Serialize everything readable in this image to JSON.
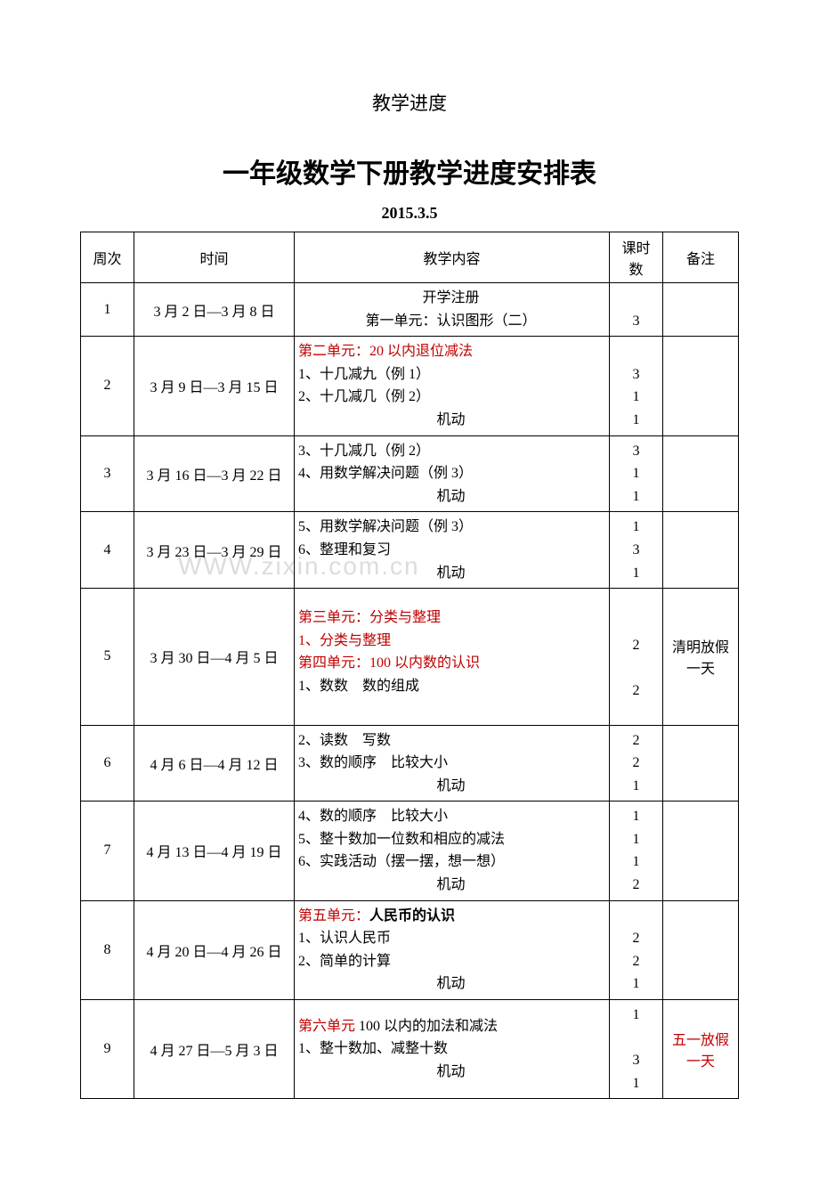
{
  "pre_title": "教学进度",
  "main_title": "一年级数学下册教学进度安排表",
  "date_line": "2015.3.5",
  "watermark": "WWW.zixin.com.cn",
  "headers": {
    "week": "周次",
    "time": "时间",
    "content": "教学内容",
    "hours": "课时数",
    "notes": "备注"
  },
  "rows": [
    {
      "week": "1",
      "time": "3 月 2 日—3 月 8 日",
      "content_lines": [
        {
          "text": "开学注册",
          "align": "center"
        },
        {
          "text": "第一单元：认识图形（二）",
          "align": "center"
        }
      ],
      "hours_lines": [
        "",
        "3"
      ],
      "notes": ""
    },
    {
      "week": "2",
      "time": "3 月 9 日—3 月 15 日",
      "content_lines": [
        {
          "text": "第二单元：20 以内退位减法",
          "red": true
        },
        {
          "text": "1、十几减九（例 1）"
        },
        {
          "text": "2、十几减几（例 2）"
        },
        {
          "text": "机动",
          "align": "center"
        }
      ],
      "hours_lines": [
        "",
        "3",
        "1",
        "1"
      ],
      "notes": ""
    },
    {
      "week": "3",
      "time": "3 月 16 日—3 月 22 日",
      "content_lines": [
        {
          "text": "3、十几减几（例 2）"
        },
        {
          "text": "4、用数学解决问题（例 3）"
        },
        {
          "text": "机动",
          "align": "center"
        }
      ],
      "hours_lines": [
        "3",
        "1",
        "1"
      ],
      "notes": ""
    },
    {
      "week": "4",
      "time": "3 月 23 日—3 月 29 日",
      "content_lines": [
        {
          "text": "5、用数学解决问题（例 3）"
        },
        {
          "text": "6、整理和复习"
        },
        {
          "text": "机动",
          "align": "center"
        }
      ],
      "hours_lines": [
        "1",
        "3",
        "1"
      ],
      "notes": ""
    },
    {
      "week": "5",
      "time": "3 月 30 日—4 月 5 日",
      "content_lines": [
        {
          "text": "第三单元：分类与整理",
          "red": true
        },
        {
          "text": "1、分类与整理",
          "red": true
        },
        {
          "text": "第四单元：100 以内数的认识",
          "red": true
        },
        {
          "text": "1、数数　数的组成"
        }
      ],
      "hours_lines": [
        "",
        "2",
        "",
        "2"
      ],
      "hours_padded": true,
      "notes": "清明放假一天"
    },
    {
      "week": "6",
      "time": "4 月 6 日—4 月 12 日",
      "content_lines": [
        {
          "text": "2、读数　写数"
        },
        {
          "text": "3、数的顺序　比较大小"
        },
        {
          "text": "机动",
          "align": "center"
        }
      ],
      "hours_lines": [
        "2",
        "2",
        "1"
      ],
      "notes": ""
    },
    {
      "week": "7",
      "time": "4 月 13 日—4 月 19 日",
      "content_lines": [
        {
          "text": "4、数的顺序　比较大小"
        },
        {
          "text": "5、整十数加一位数和相应的减法",
          "wrap": true
        },
        {
          "text": "6、实践活动（摆一摆，想一想）"
        },
        {
          "text": "机动",
          "align": "center"
        }
      ],
      "hours_lines": [
        "1",
        "1",
        "1",
        "2"
      ],
      "notes": ""
    },
    {
      "week": "8",
      "time": "4 月 20 日—4 月 26 日",
      "content_lines": [
        {
          "prefix": "第五单元：",
          "prefix_red": true,
          "text": "人民币的认识",
          "bold": true
        },
        {
          "text": "1、认识人民币"
        },
        {
          "text": "2、简单的计算"
        },
        {
          "text": "机动",
          "align": "center"
        }
      ],
      "hours_lines": [
        "",
        "2",
        "2",
        "1"
      ],
      "notes": ""
    },
    {
      "week": "9",
      "time": "4 月 27 日—5 月 3 日",
      "content_lines": [
        {
          "prefix": "第六单元",
          "prefix_red": true,
          "text": " 100 以内的加法和减法",
          "wrap": true
        },
        {
          "text": "1、整十数加、减整十数"
        },
        {
          "text": "机动",
          "align": "center"
        }
      ],
      "hours_lines": [
        "1",
        "",
        "3",
        "1"
      ],
      "notes": "五一放假一天",
      "notes_red": true
    }
  ]
}
